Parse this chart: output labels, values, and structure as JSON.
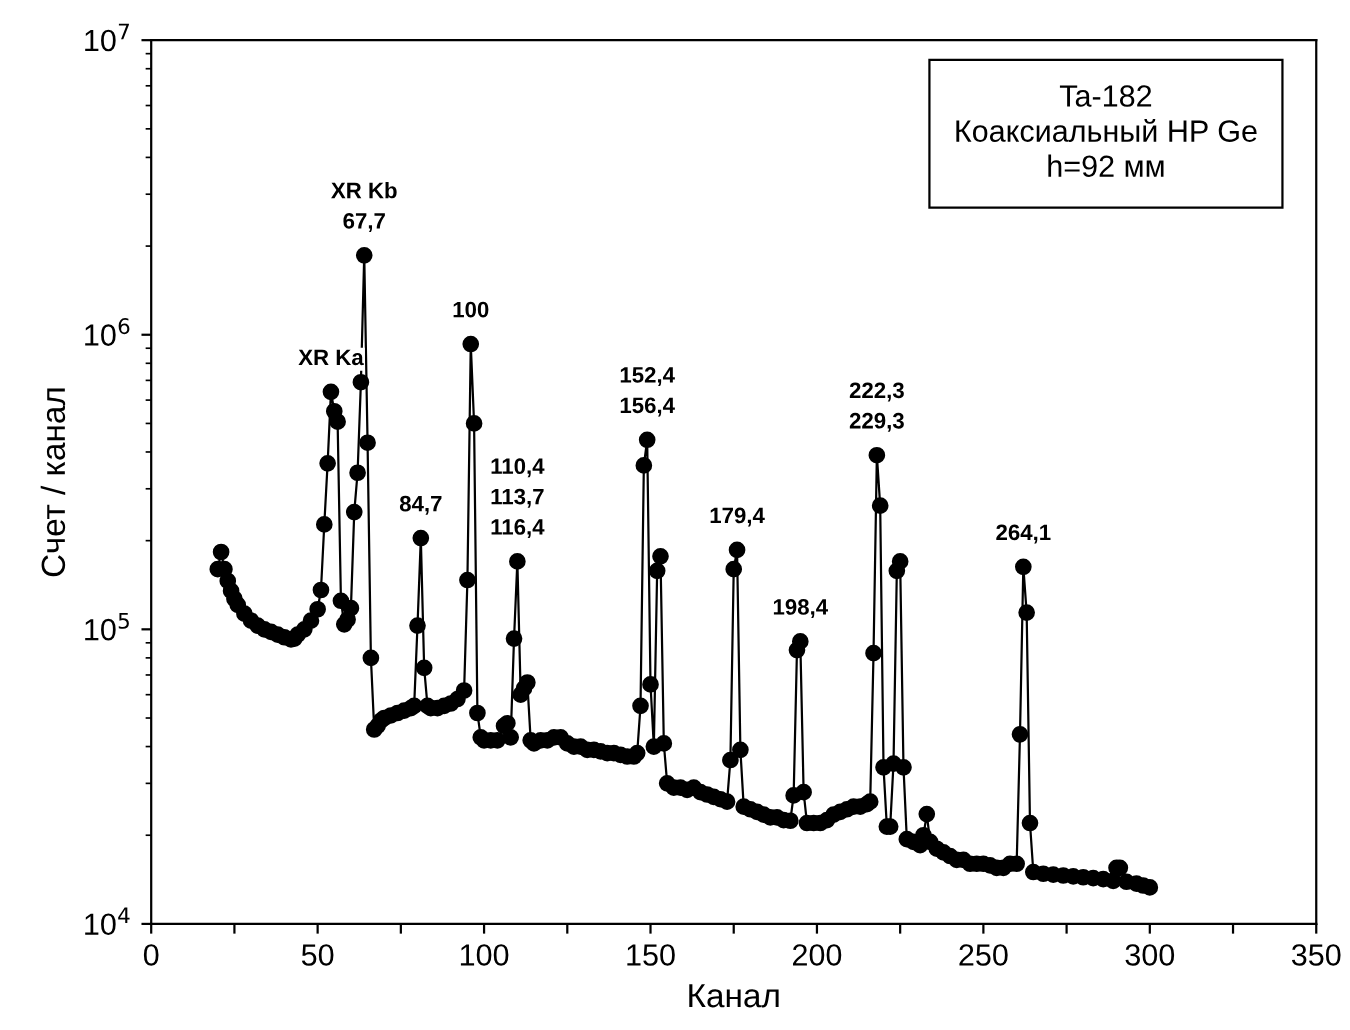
{
  "chart_data": {
    "type": "line",
    "xlabel": "Канал",
    "ylabel": "Счет / канал",
    "log": "y",
    "grid": false,
    "marker": "circle",
    "line_style": "solid",
    "xlim": [
      0,
      350
    ],
    "xticks": [
      0,
      {
        "value": 25,
        "label": null
      },
      50,
      {
        "value": 75,
        "label": null
      },
      100,
      {
        "value": 125,
        "label": null
      },
      150,
      {
        "value": 175,
        "label": null
      },
      200,
      {
        "value": 225,
        "label": null
      },
      250,
      {
        "value": 275,
        "label": null
      },
      300,
      {
        "value": 325,
        "label": null
      },
      350
    ],
    "ylim": [
      10000,
      10000000
    ],
    "yticks": [
      {
        "value": 10000,
        "label": "10$^{4}$"
      },
      {
        "value": 100000,
        "label": "10$^{5}$"
      },
      {
        "value": 1000000,
        "label": "10$^{6}$"
      },
      {
        "value": 10000000,
        "label": "10$^{7}$"
      }
    ],
    "series": [
      {
        "color": "#000000",
        "x": [
          20,
          21,
          22,
          23,
          24,
          25,
          26,
          28,
          30,
          32,
          34,
          36,
          38,
          40,
          42,
          43,
          44,
          46,
          48,
          50,
          51,
          52,
          53,
          54,
          55,
          56,
          57,
          58,
          59,
          60,
          61,
          62,
          63,
          64,
          65,
          66,
          67,
          68,
          69,
          70,
          72,
          74,
          76,
          78,
          79,
          80,
          81,
          82,
          83,
          84,
          86,
          88,
          90,
          92,
          94,
          95,
          96,
          97,
          98,
          99,
          100,
          102,
          104,
          106,
          107,
          108,
          109,
          110,
          111,
          112,
          113,
          114,
          115,
          117,
          119,
          121,
          123,
          125,
          127,
          129,
          131,
          133,
          135,
          137,
          139,
          141,
          143,
          145,
          146,
          147,
          148,
          149,
          150,
          151,
          152,
          153,
          154,
          155,
          157,
          159,
          161,
          163,
          165,
          167,
          169,
          171,
          173,
          174,
          175,
          176,
          177,
          178,
          180,
          182,
          184,
          186,
          188,
          190,
          192,
          193,
          194,
          195,
          196,
          197,
          199,
          201,
          203,
          205,
          207,
          209,
          211,
          213,
          215,
          216,
          217,
          218,
          219,
          220,
          221,
          222,
          223,
          224,
          225,
          226,
          227,
          229,
          231,
          232,
          233,
          234,
          236,
          238,
          240,
          242,
          244,
          246,
          248,
          250,
          252,
          254,
          256,
          258,
          260,
          261,
          262,
          263,
          264,
          265,
          268,
          271,
          274,
          277,
          280,
          283,
          286,
          289,
          290,
          291,
          293,
          296,
          298,
          300
        ],
        "values": [
          160000,
          183000,
          160000,
          146000,
          135000,
          127000,
          121000,
          113000,
          107000,
          103000,
          100000,
          98000,
          96000,
          94000,
          92500,
          93000,
          96000,
          100000,
          107000,
          117000,
          136000,
          227000,
          366000,
          640000,
          550000,
          507000,
          125000,
          104000,
          108000,
          118000,
          250000,
          340000,
          690000,
          1860000,
          430000,
          80000,
          45700,
          47000,
          49000,
          50000,
          51000,
          52000,
          53000,
          54000,
          55000,
          103000,
          204000,
          74000,
          55000,
          54000,
          54000,
          55000,
          56000,
          58000,
          62000,
          147000,
          930000,
          500000,
          52000,
          43000,
          42000,
          42000,
          42000,
          47000,
          48000,
          43000,
          93000,
          170000,
          60000,
          63000,
          66000,
          42000,
          41000,
          42000,
          42000,
          43000,
          43000,
          41000,
          40000,
          40000,
          39000,
          39000,
          38500,
          38000,
          38000,
          37500,
          37000,
          37000,
          38000,
          55000,
          360000,
          440000,
          65000,
          40000,
          158000,
          177000,
          41000,
          30000,
          29000,
          29000,
          28500,
          29000,
          28000,
          27500,
          27000,
          26500,
          26000,
          36000,
          160000,
          186000,
          39000,
          25000,
          24500,
          24000,
          23500,
          23000,
          23000,
          22500,
          22400,
          27300,
          85000,
          91000,
          28000,
          22000,
          22000,
          22000,
          22500,
          23500,
          24000,
          24500,
          25000,
          25000,
          25500,
          26000,
          83000,
          390000,
          263000,
          34000,
          21400,
          21400,
          35000,
          158000,
          170000,
          34000,
          19400,
          19000,
          18500,
          20000,
          23600,
          19000,
          18000,
          17500,
          17000,
          16500,
          16500,
          16000,
          16000,
          16000,
          15800,
          15500,
          15500,
          16000,
          16000,
          44000,
          163000,
          114000,
          22000,
          15000,
          14800,
          14700,
          14600,
          14500,
          14400,
          14300,
          14200,
          14000,
          15500,
          15500,
          13900,
          13700,
          13500,
          13300
        ]
      }
    ],
    "annotations": [
      {
        "text": "XR Ka",
        "x": 54,
        "y": 640000
      },
      {
        "text": "XR Kb\n67,7",
        "x": 64,
        "y": 1860000
      },
      {
        "text": "84,7",
        "x": 81,
        "y": 204000
      },
      {
        "text": "100",
        "x": 96,
        "y": 930000
      },
      {
        "text": "110,4\n113,7\n116,4",
        "x": 110,
        "y": 170000
      },
      {
        "text": "152,4\n156,4",
        "x": 149,
        "y": 440000
      },
      {
        "text": "179,4",
        "x": 176,
        "y": 186000
      },
      {
        "text": "198,4",
        "x": 195,
        "y": 91000
      },
      {
        "text": "222,3\n229,3",
        "x": 218,
        "y": 390000
      },
      {
        "text": "264,1",
        "x": 262,
        "y": 163000
      },
      "Ta-182\nКоаксиальный HP Ge\nh=92 мм"
    ]
  }
}
